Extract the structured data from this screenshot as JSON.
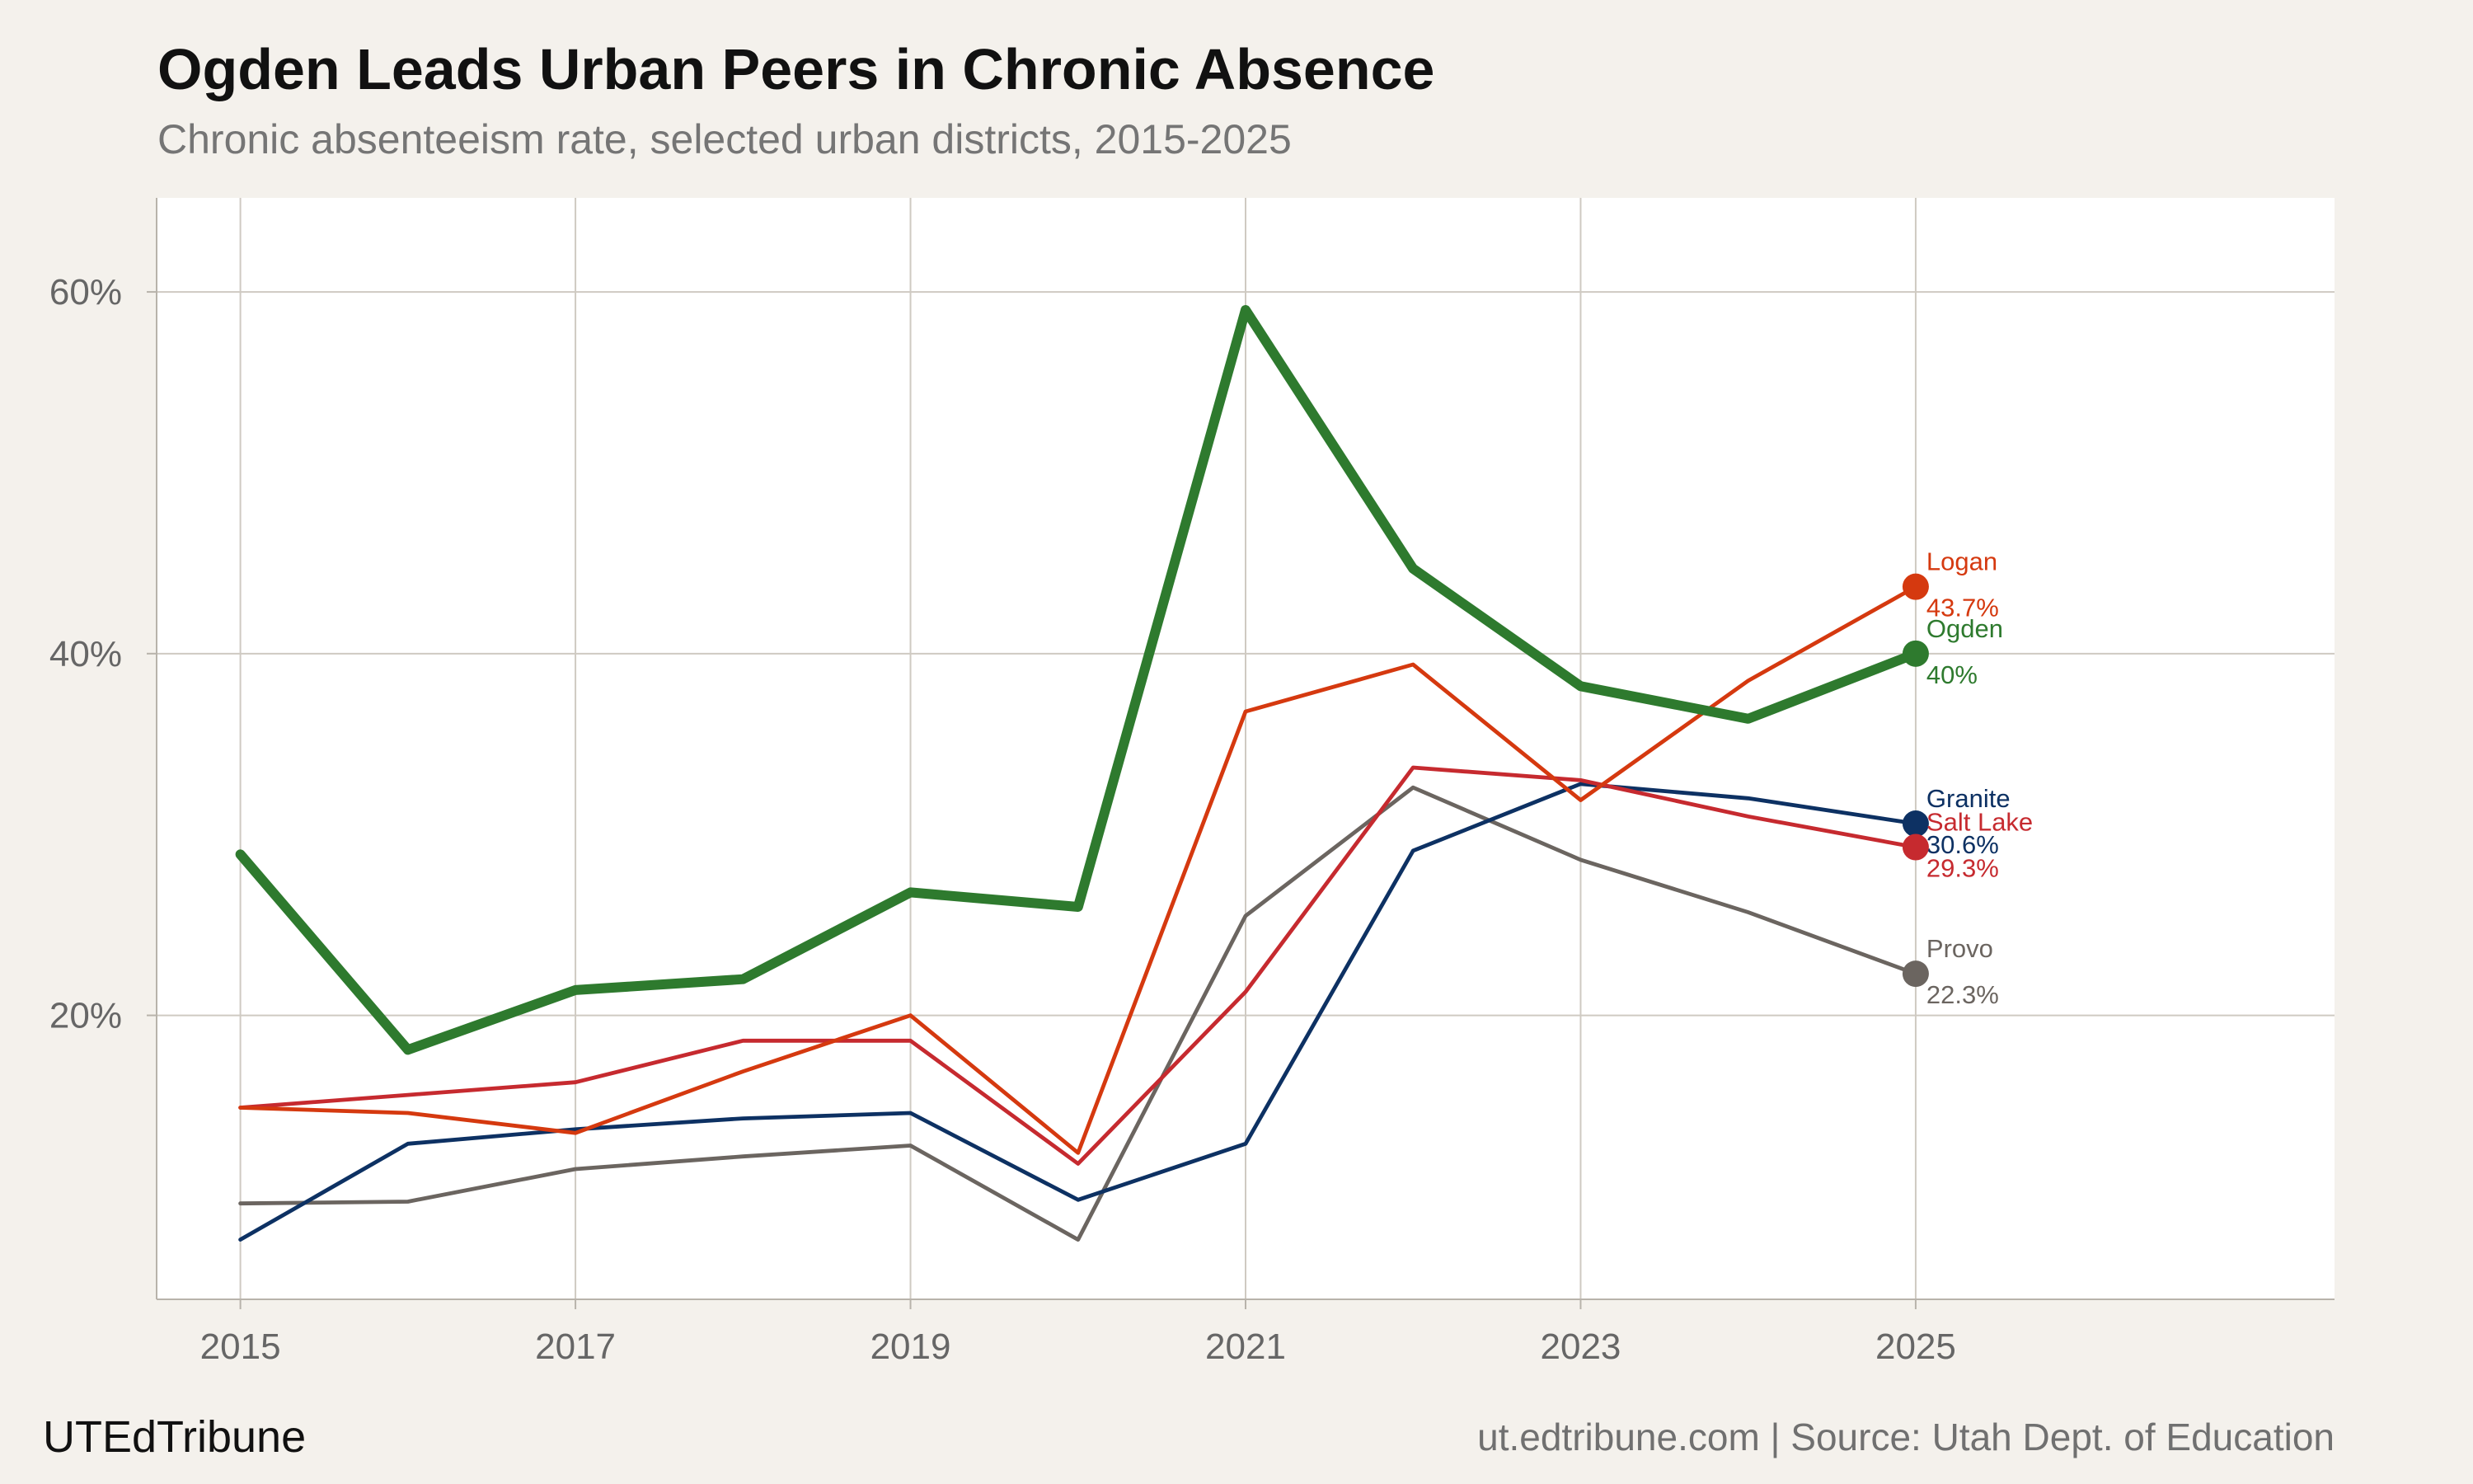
{
  "header": {
    "title": "Ogden Leads Urban Peers in Chronic Absence",
    "subtitle": "Chronic absenteeism rate, selected urban districts, 2015-2025"
  },
  "footer": {
    "brand": "UTEdTribune",
    "source": "ut.edtribune.com | Source: Utah Dept. of Education"
  },
  "chart_data": {
    "type": "line",
    "title": "Ogden Leads Urban Peers in Chronic Absence",
    "subtitle": "Chronic absenteeism rate, selected urban districts, 2015-2025",
    "xlabel": "",
    "ylabel": "",
    "x": [
      2015,
      2016,
      2017,
      2018,
      2019,
      2020,
      2021,
      2022,
      2023,
      2024,
      2025
    ],
    "xlim": [
      2014.5,
      2027.5
    ],
    "ylim": [
      4.3,
      65.2
    ],
    "xticks": [
      2015,
      2017,
      2019,
      2021,
      2023,
      2025
    ],
    "xtick_labels": [
      "2015",
      "2017",
      "2019",
      "2021",
      "2023",
      "2025"
    ],
    "yticks": [
      20,
      40,
      60
    ],
    "ytick_labels": [
      "20%",
      "40%",
      "60%"
    ],
    "grid": true,
    "legend": "direct labels at line ends",
    "series": [
      {
        "name": "Provo",
        "color": "#6b6560",
        "width": 2,
        "end_label": "22.3%",
        "values": [
          9.6,
          9.7,
          11.5,
          12.2,
          12.8,
          7.6,
          25.5,
          32.6,
          28.6,
          25.7,
          22.3
        ]
      },
      {
        "name": "Granite",
        "color": "#0d3163",
        "width": 2,
        "end_label": "30.6%",
        "values": [
          7.6,
          12.9,
          13.7,
          14.3,
          14.6,
          9.8,
          12.9,
          29.1,
          32.8,
          32.0,
          30.6
        ]
      },
      {
        "name": "Salt Lake",
        "color": "#c62a2f",
        "width": 2,
        "end_label": "29.3%",
        "values": [
          14.9,
          15.6,
          16.3,
          18.6,
          18.6,
          11.8,
          21.3,
          33.7,
          33.0,
          31.0,
          29.3
        ]
      },
      {
        "name": "Logan",
        "color": "#d5390f",
        "width": 2,
        "end_label": "43.7%",
        "values": [
          14.9,
          14.6,
          13.5,
          16.9,
          20.0,
          12.4,
          36.8,
          39.4,
          31.9,
          38.5,
          43.7
        ]
      },
      {
        "name": "Ogden",
        "color": "#2e7a2e",
        "width": 5,
        "end_label": "40%",
        "values": [
          28.9,
          18.1,
          21.4,
          22.0,
          26.8,
          26.0,
          59.0,
          44.7,
          38.2,
          36.4,
          40.0
        ]
      }
    ]
  }
}
